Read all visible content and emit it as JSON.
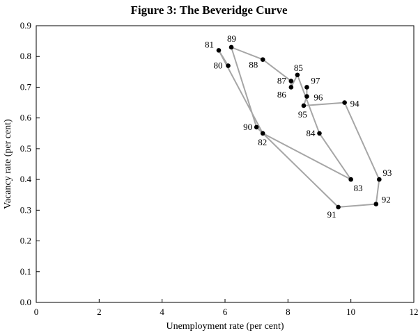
{
  "chart_data": {
    "type": "scatter",
    "title": "Figure 3: The Beveridge Curve",
    "xlabel": "Unemployment rate (per cent)",
    "ylabel": "Vacancy rate (per cent)",
    "xlim": [
      0,
      12
    ],
    "ylim": [
      0,
      0.9
    ],
    "xticks": [
      0,
      2,
      4,
      6,
      8,
      10,
      12
    ],
    "yticks": [
      "0.0",
      "0.1",
      "0.2",
      "0.3",
      "0.4",
      "0.5",
      "0.6",
      "0.7",
      "0.8",
      "0.9"
    ],
    "grid": false,
    "connected": true,
    "line_color": "#a6a6a6",
    "marker_color": "#000000",
    "points": [
      {
        "label": "80",
        "x": 6.1,
        "y": 0.77
      },
      {
        "label": "81",
        "x": 5.8,
        "y": 0.82
      },
      {
        "label": "82",
        "x": 7.2,
        "y": 0.55
      },
      {
        "label": "83",
        "x": 10.0,
        "y": 0.4
      },
      {
        "label": "84",
        "x": 9.0,
        "y": 0.55
      },
      {
        "label": "85",
        "x": 8.3,
        "y": 0.74
      },
      {
        "label": "86",
        "x": 8.1,
        "y": 0.7
      },
      {
        "label": "87",
        "x": 8.1,
        "y": 0.72
      },
      {
        "label": "88",
        "x": 7.2,
        "y": 0.79
      },
      {
        "label": "89",
        "x": 6.2,
        "y": 0.83
      },
      {
        "label": "90",
        "x": 7.0,
        "y": 0.57
      },
      {
        "label": "91",
        "x": 9.6,
        "y": 0.31
      },
      {
        "label": "92",
        "x": 10.8,
        "y": 0.32
      },
      {
        "label": "93",
        "x": 10.9,
        "y": 0.4
      },
      {
        "label": "94",
        "x": 9.8,
        "y": 0.65
      },
      {
        "label": "95",
        "x": 8.5,
        "y": 0.64
      },
      {
        "label": "96",
        "x": 8.6,
        "y": 0.67
      },
      {
        "label": "97",
        "x": 8.6,
        "y": 0.7
      }
    ]
  }
}
